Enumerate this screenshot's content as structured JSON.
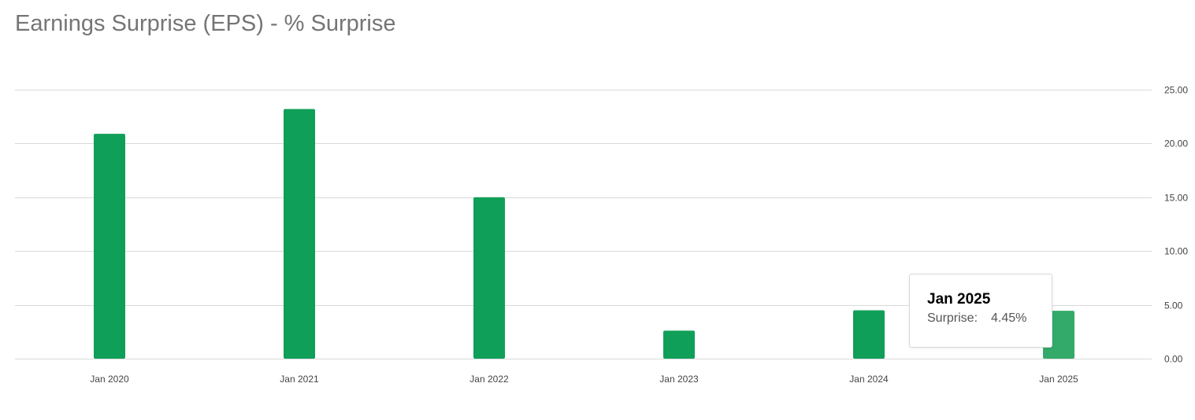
{
  "title": "Earnings Surprise (EPS) - % Surprise",
  "colors": {
    "bar": "#109f58",
    "bar_highlight": "#33aa69",
    "grid": "#d9d9d9",
    "tick_label": "#444444",
    "title": "#757575"
  },
  "tooltip": {
    "title": "Jan 2025",
    "label": "Surprise:",
    "value": "4.45%"
  },
  "chart_data": {
    "type": "bar",
    "title": "Earnings Surprise (EPS) - % Surprise",
    "categories": [
      "Jan 2020",
      "Jan 2021",
      "Jan 2022",
      "Jan 2023",
      "Jan 2024",
      "Jan 2025"
    ],
    "series": [
      {
        "name": "Surprise",
        "values": [
          20.9,
          23.2,
          15.0,
          2.6,
          4.5,
          4.45
        ]
      }
    ],
    "highlighted_category": "Jan 2025",
    "ylim": [
      0,
      25
    ],
    "yticks": [
      "0.00",
      "5.00",
      "10.00",
      "15.00",
      "20.00",
      "25.00"
    ],
    "y_axis_position": "right",
    "grid": true,
    "legend": "none"
  }
}
